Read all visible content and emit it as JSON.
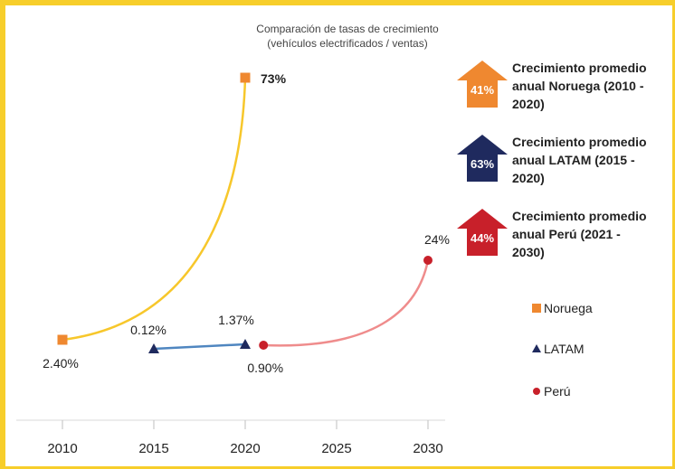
{
  "chart_data": {
    "type": "line",
    "title": "Comparación de tasas de crecimiento",
    "subtitle": "(vehículos electrificados / ventas)",
    "x_ticks": [
      "2010",
      "2015",
      "2020",
      "2025",
      "2030"
    ],
    "xlim": [
      2010,
      2030
    ],
    "grid": false,
    "legend": "right",
    "series": [
      {
        "name": "Noruega",
        "color": "#f7c72b",
        "marker_color": "#ef8830",
        "marker": "square",
        "x": [
          2010,
          2020
        ],
        "y": [
          2.4,
          73
        ],
        "labels": [
          "2.40%",
          "73%"
        ]
      },
      {
        "name": "LATAM",
        "color": "#4f86c0",
        "marker_color": "#1f2a5e",
        "marker": "triangle",
        "x": [
          2015,
          2020
        ],
        "y": [
          0.12,
          1.37
        ],
        "labels": [
          "0.12%",
          "1.37%"
        ]
      },
      {
        "name": "Perú",
        "color": "#ef8c8c",
        "marker_color": "#c8202a",
        "marker": "circle",
        "x": [
          2021,
          2030
        ],
        "y": [
          0.9,
          24
        ],
        "labels": [
          "0.90%",
          "24%"
        ]
      }
    ],
    "growth_rates": [
      {
        "value": "41%",
        "text_lines": [
          "Crecimiento promedio",
          "anual Noruega (2010 -",
          "2020)"
        ],
        "color": "#ef8830"
      },
      {
        "value": "63%",
        "text_lines": [
          "Crecimiento promedio",
          "anual LATAM (2015 -",
          "2020)"
        ],
        "color": "#1f2a5e"
      },
      {
        "value": "44%",
        "text_lines": [
          "Crecimiento promedio",
          "anual Perú (2021 -",
          "2030)"
        ],
        "color": "#c8202a"
      }
    ]
  }
}
